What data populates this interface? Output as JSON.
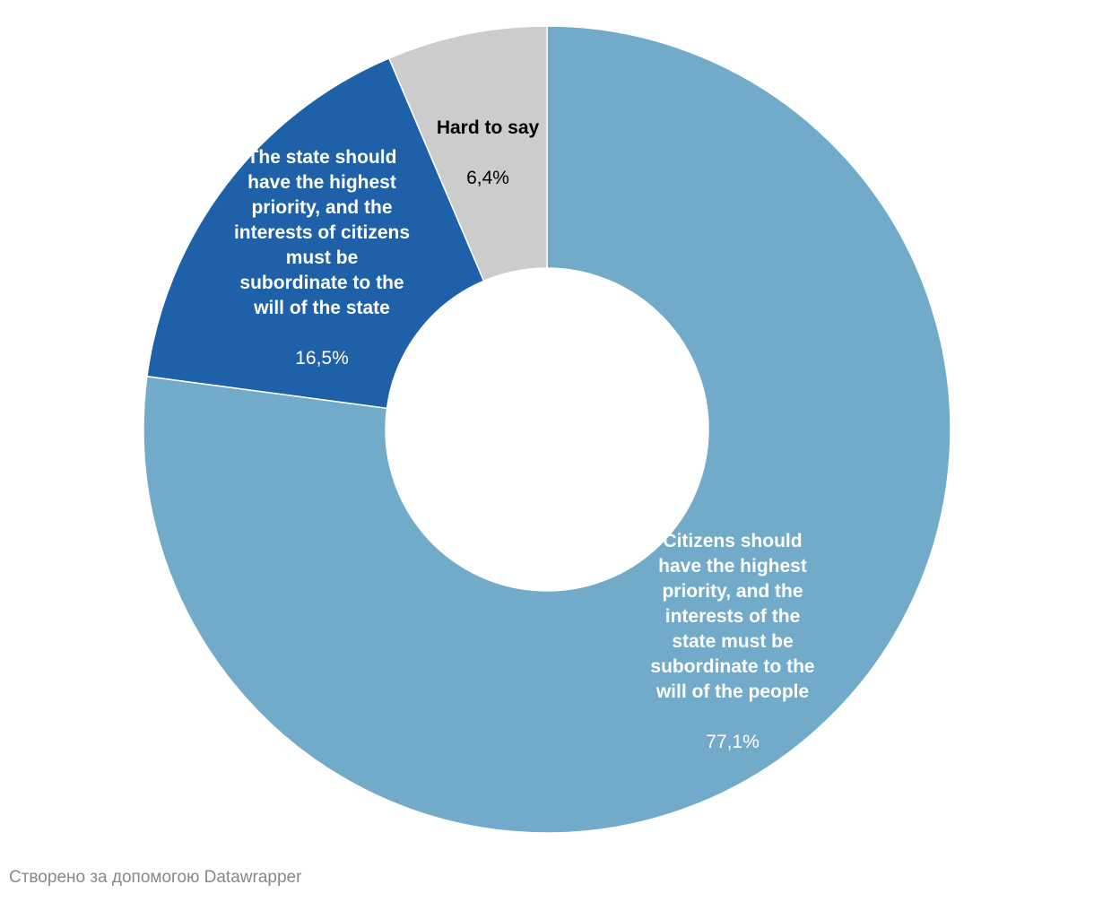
{
  "chart_data": {
    "type": "pie",
    "donut": true,
    "slices": [
      {
        "label": "Citizens should\nhave the highest\npriority, and the\ninterests of the\nstate must be\nsubordinate to the\nwill of the people",
        "value": 77.1,
        "value_label": "77,1%",
        "color": "#72aac9",
        "label_color": "#ffffff"
      },
      {
        "label": "The state should\nhave the highest\npriority, and the\ninterests of citizens\nmust be\nsubordinate to the\nwill of the state",
        "value": 16.5,
        "value_label": "16,5%",
        "color": "#1f61a9",
        "label_color": "#ffffff"
      },
      {
        "label": "Hard to say",
        "value": 6.4,
        "value_label": "6,4%",
        "color": "#cccccc",
        "label_color": "#000000"
      }
    ]
  },
  "credit": "Створено за допомогою Datawrapper"
}
